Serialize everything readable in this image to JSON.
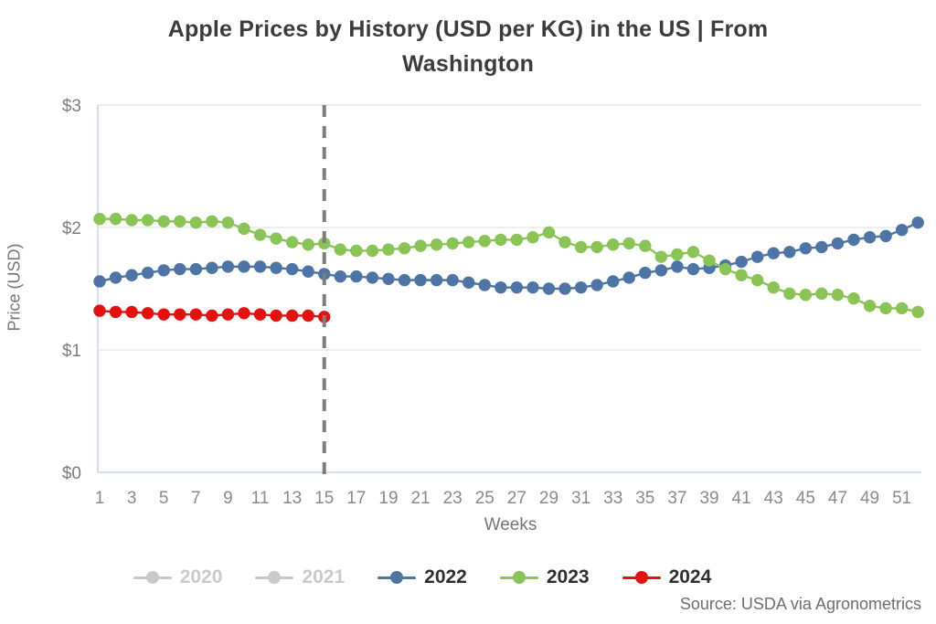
{
  "title_lines": [
    "Apple Prices by History (USD per KG) in the US | From",
    "Washington"
  ],
  "source": "Source: USDA via Agronometrics",
  "chart_data": {
    "type": "line",
    "title": "Apple Prices by History (USD per KG) in the US | From Washington",
    "xlabel": "Weeks",
    "ylabel": "Price (USD)",
    "ylim": [
      0,
      3
    ],
    "x_range": [
      1,
      52
    ],
    "yticks": [
      "$0",
      "$1",
      "$2",
      "$3"
    ],
    "xticks": [
      1,
      3,
      5,
      7,
      9,
      11,
      13,
      15,
      17,
      19,
      21,
      23,
      25,
      27,
      29,
      31,
      33,
      35,
      37,
      39,
      41,
      43,
      45,
      47,
      49,
      51
    ],
    "grid": "horizontal",
    "legend_position": "bottom",
    "annotations": {
      "dashed_vertical_line_week": 15,
      "dash_color": "#7e7e7e"
    },
    "series": [
      {
        "name": "2020",
        "color": "#c9c9c9",
        "active": false,
        "values": []
      },
      {
        "name": "2021",
        "color": "#c9c9c9",
        "active": false,
        "values": []
      },
      {
        "name": "2022",
        "color": "#4d74a5",
        "active": true,
        "values": [
          1.56,
          1.59,
          1.61,
          1.63,
          1.65,
          1.66,
          1.66,
          1.67,
          1.68,
          1.68,
          1.68,
          1.67,
          1.66,
          1.64,
          1.62,
          1.6,
          1.6,
          1.59,
          1.58,
          1.57,
          1.57,
          1.57,
          1.57,
          1.55,
          1.53,
          1.51,
          1.51,
          1.51,
          1.5,
          1.5,
          1.51,
          1.53,
          1.56,
          1.59,
          1.63,
          1.65,
          1.68,
          1.66,
          1.67,
          1.69,
          1.72,
          1.76,
          1.79,
          1.8,
          1.83,
          1.84,
          1.87,
          1.9,
          1.92,
          1.93,
          1.98,
          2.04
        ]
      },
      {
        "name": "2023",
        "color": "#8ac356",
        "active": true,
        "values": [
          2.07,
          2.07,
          2.06,
          2.06,
          2.05,
          2.05,
          2.04,
          2.05,
          2.04,
          1.99,
          1.94,
          1.91,
          1.88,
          1.86,
          1.87,
          1.82,
          1.81,
          1.81,
          1.82,
          1.83,
          1.85,
          1.86,
          1.87,
          1.88,
          1.89,
          1.9,
          1.9,
          1.92,
          1.96,
          1.88,
          1.84,
          1.84,
          1.86,
          1.87,
          1.85,
          1.76,
          1.78,
          1.8,
          1.73,
          1.66,
          1.61,
          1.57,
          1.51,
          1.46,
          1.45,
          1.46,
          1.45,
          1.42,
          1.36,
          1.34,
          1.34,
          1.31
        ]
      },
      {
        "name": "2024",
        "color": "#e41111",
        "active": true,
        "values": [
          1.32,
          1.31,
          1.31,
          1.3,
          1.29,
          1.29,
          1.29,
          1.28,
          1.29,
          1.3,
          1.29,
          1.28,
          1.28,
          1.28,
          1.27
        ]
      }
    ]
  }
}
